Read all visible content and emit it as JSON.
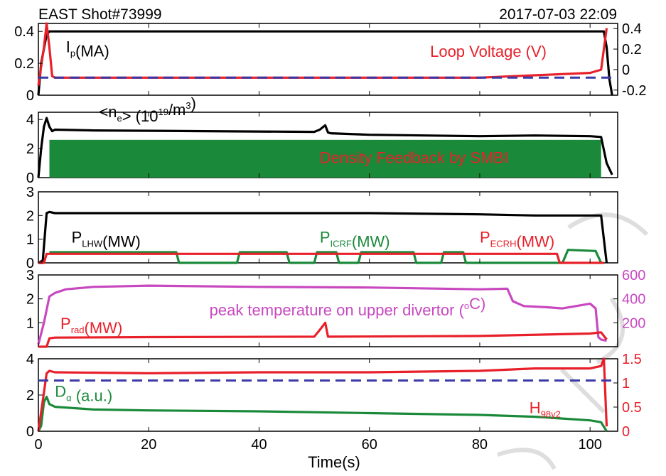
{
  "header": {
    "shot": "EAST Shot#73999",
    "date": "2017-07-03 22:09"
  },
  "xaxis": {
    "label": "Time(s)",
    "ticks": [
      0,
      20,
      40,
      60,
      80,
      100
    ],
    "range": [
      0,
      105
    ]
  },
  "colors": {
    "black": "#000000",
    "red": "#e8202a",
    "blue": "#3a3aa8",
    "green": "#1a8a3a",
    "magenta": "#c848c0"
  },
  "chart_data": [
    {
      "type": "line",
      "panel": 1,
      "ylim": [
        0,
        0.45
      ],
      "yticks": [
        "0",
        "0.2",
        "0.4"
      ],
      "y2lim": [
        -0.25,
        0.45
      ],
      "y2ticks": [
        "-0.2",
        "0",
        "0.2",
        "0.4"
      ],
      "labels": [
        {
          "parts": [
            {
              "t": "I"
            },
            {
              "t": "p",
              "sub": true
            },
            {
              "t": "(MA)"
            }
          ],
          "color": "black",
          "at": [
            5,
            0.27
          ]
        },
        {
          "parts": [
            {
              "t": "Loop Voltage (V)"
            }
          ],
          "color": "red",
          "at": [
            71,
            0.24
          ]
        }
      ],
      "series": [
        {
          "color": "black",
          "axis": "left",
          "x": [
            0,
            0.5,
            1.5,
            2,
            3,
            50,
            100,
            102.5,
            103,
            103.5,
            104
          ],
          "y": [
            0.0,
            0.2,
            0.38,
            0.4,
            0.4,
            0.4,
            0.4,
            0.4,
            0.3,
            0.1,
            0.0
          ]
        },
        {
          "color": "red",
          "axis": "left",
          "x": [
            0,
            1,
            1.5,
            2,
            2.5,
            3,
            20,
            40,
            60,
            80,
            100,
            102,
            103
          ],
          "y": [
            0.06,
            0.3,
            0.45,
            0.3,
            0.12,
            0.11,
            0.11,
            0.11,
            0.11,
            0.11,
            0.14,
            0.16,
            0.42
          ]
        },
        {
          "color": "blue",
          "axis": "left",
          "dash": true,
          "x": [
            0,
            105
          ],
          "y": [
            0.11,
            0.11
          ]
        }
      ]
    },
    {
      "type": "line",
      "panel": 2,
      "ylim": [
        0,
        4.5
      ],
      "yticks": [
        "0",
        "2",
        "4"
      ],
      "labels": [
        {
          "parts": [
            {
              "t": "<n"
            },
            {
              "t": "e",
              "sub": true
            },
            {
              "t": "> (10"
            },
            {
              "t": "19",
              "sup": true
            },
            {
              "t": "/m"
            },
            {
              "t": "3",
              "sup": true
            },
            {
              "t": ")"
            }
          ],
          "color": "black",
          "at": [
            11,
            4.15
          ]
        },
        {
          "parts": [
            {
              "t": "Density Feedback by SMBI"
            }
          ],
          "color": "red",
          "at": [
            51,
            1.0
          ]
        }
      ],
      "bands": [
        {
          "color": "green",
          "x0": 2,
          "x1": 102,
          "y0": 0,
          "y1": 2.6
        }
      ],
      "series": [
        {
          "color": "black",
          "x": [
            0,
            0.5,
            1,
            1.5,
            2,
            2.5,
            3,
            10,
            30,
            50,
            51,
            52,
            52.5,
            53,
            60,
            70,
            80,
            90,
            100,
            102,
            103,
            104
          ],
          "y": [
            0,
            2.0,
            3.5,
            4.1,
            3.5,
            3.2,
            3.3,
            3.25,
            3.2,
            3.15,
            3.3,
            3.6,
            3.1,
            3.05,
            2.95,
            2.9,
            2.85,
            2.9,
            2.85,
            2.8,
            1.0,
            0.2
          ]
        }
      ]
    },
    {
      "type": "line",
      "panel": 3,
      "ylim": [
        0,
        3
      ],
      "yticks": [
        "0",
        "1",
        "2",
        "3"
      ],
      "labels": [
        {
          "parts": [
            {
              "t": "P"
            },
            {
              "t": "LHW",
              "sub": true
            },
            {
              "t": "(MW)"
            }
          ],
          "color": "black",
          "at": [
            6,
            0.85
          ]
        },
        {
          "parts": [
            {
              "t": "P"
            },
            {
              "t": "ICRF",
              "sub": true
            },
            {
              "t": "(MW)"
            }
          ],
          "color": "green",
          "at": [
            51,
            0.85
          ]
        },
        {
          "parts": [
            {
              "t": "P"
            },
            {
              "t": "ECRH",
              "sub": true
            },
            {
              "t": "(MW)"
            }
          ],
          "color": "red",
          "at": [
            80,
            0.85
          ]
        }
      ],
      "series": [
        {
          "color": "black",
          "x": [
            0,
            0.8,
            1.5,
            2,
            3,
            30,
            60,
            80,
            90,
            100,
            102,
            102.5,
            103
          ],
          "y": [
            0,
            0.1,
            2.1,
            2.15,
            2.1,
            2.1,
            2.1,
            2.05,
            2.0,
            2.0,
            2.0,
            1.0,
            0
          ]
        },
        {
          "color": "green",
          "x": [
            2,
            25,
            25.5,
            36,
            36.5,
            45,
            45.5,
            50,
            50.5,
            54,
            54.5,
            58,
            58.5,
            68,
            68.5,
            73,
            73.5,
            77,
            77.5,
            95,
            96,
            101,
            102
          ],
          "y": [
            0.45,
            0.45,
            0,
            0,
            0.45,
            0.45,
            0,
            0,
            0.45,
            0.45,
            0,
            0,
            0.45,
            0.45,
            0,
            0,
            0.45,
            0.45,
            0,
            0,
            0.55,
            0.5,
            0
          ]
        },
        {
          "color": "red",
          "x": [
            0,
            1,
            1.5,
            94,
            94.5,
            102,
            102.5
          ],
          "y": [
            0,
            0,
            0.38,
            0.38,
            0,
            0,
            0
          ]
        }
      ]
    },
    {
      "type": "line",
      "panel": 4,
      "ylim": [
        0,
        3
      ],
      "yticks": [
        "1",
        "2",
        "3"
      ],
      "y2lim": [
        0,
        600
      ],
      "y2ticks": [
        "200",
        "400",
        "600"
      ],
      "labels": [
        {
          "parts": [
            {
              "t": "peak temperature on upper divertor ("
            },
            {
              "t": "o",
              "sup": true
            },
            {
              "t": "C)"
            }
          ],
          "color": "magenta",
          "at": [
            31,
            1.3
          ]
        },
        {
          "parts": [
            {
              "t": "P"
            },
            {
              "t": "rad",
              "sub": true
            },
            {
              "t": "(MW)"
            }
          ],
          "color": "red",
          "at": [
            4,
            0.75
          ]
        }
      ],
      "series": [
        {
          "color": "magenta",
          "axis": "right",
          "x": [
            0,
            1,
            2,
            3,
            5,
            10,
            20,
            40,
            60,
            80,
            85,
            86,
            88,
            92,
            95,
            100,
            101,
            101.5,
            102,
            103
          ],
          "y": [
            20,
            200,
            420,
            450,
            480,
            500,
            510,
            500,
            495,
            480,
            485,
            380,
            340,
            330,
            320,
            360,
            320,
            80,
            60,
            50
          ]
        },
        {
          "color": "red",
          "axis": "left",
          "x": [
            0,
            1.5,
            2,
            3,
            20,
            50,
            51,
            52,
            52.5,
            53,
            80,
            100,
            102,
            103
          ],
          "y": [
            0,
            0,
            0.35,
            0.38,
            0.4,
            0.42,
            0.7,
            1.0,
            0.42,
            0.42,
            0.45,
            0.55,
            0.6,
            0.3
          ]
        }
      ]
    },
    {
      "type": "line",
      "panel": 5,
      "ylim": [
        0,
        4
      ],
      "yticks": [
        "0",
        "2",
        "4"
      ],
      "y2lim": [
        0,
        1.5
      ],
      "y2ticks": [
        "0",
        "0.5",
        "1",
        "1.5"
      ],
      "labels": [
        {
          "parts": [
            {
              "t": "D"
            },
            {
              "t": "α",
              "sub": true
            },
            {
              "t": " (a.u.)"
            }
          ],
          "color": "green",
          "at": [
            3,
            1.9
          ]
        },
        {
          "parts": [
            {
              "t": "H"
            },
            {
              "t": "98y2",
              "sub": true
            }
          ],
          "color": "red",
          "at": [
            89,
            1.0
          ]
        }
      ],
      "series": [
        {
          "color": "green",
          "axis": "left",
          "x": [
            0,
            0.5,
            1,
            1.5,
            2,
            3,
            10,
            20,
            40,
            60,
            80,
            90,
            95,
            100,
            102,
            103
          ],
          "y": [
            0,
            0.3,
            1.6,
            1.9,
            1.5,
            1.35,
            1.2,
            1.15,
            1.1,
            1.0,
            0.9,
            0.8,
            0.7,
            0.6,
            0.5,
            0
          ]
        },
        {
          "color": "red",
          "axis": "right",
          "x": [
            0,
            1,
            1.5,
            2,
            3,
            20,
            40,
            60,
            80,
            90,
            100,
            102,
            102.5,
            103
          ],
          "y": [
            0,
            0.8,
            1.2,
            1.25,
            1.22,
            1.2,
            1.22,
            1.22,
            1.25,
            1.3,
            1.3,
            1.35,
            1.5,
            0.1
          ]
        },
        {
          "color": "blue",
          "axis": "right",
          "dash": true,
          "x": [
            0,
            105
          ],
          "y": [
            1.05,
            1.05
          ]
        }
      ]
    }
  ]
}
